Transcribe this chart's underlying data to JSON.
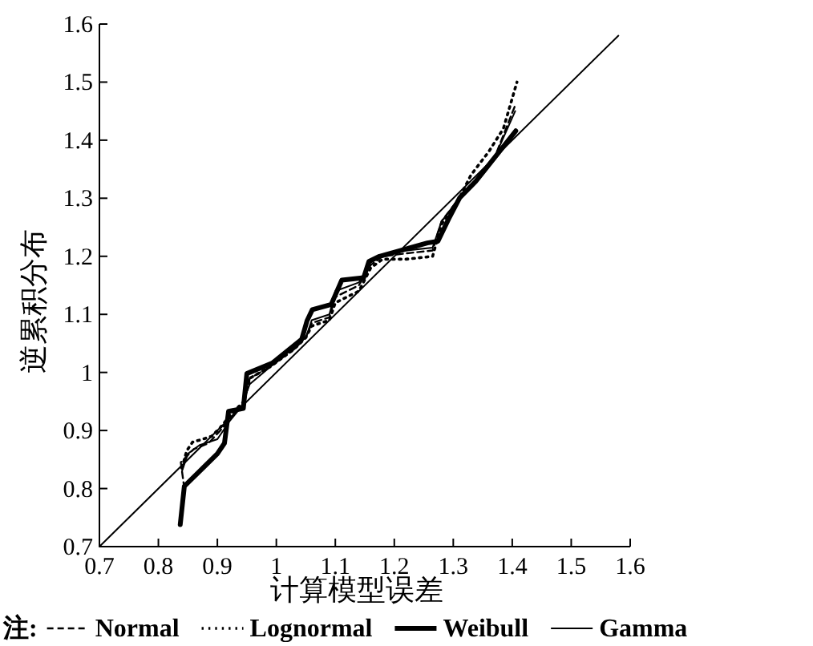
{
  "chart_data": {
    "type": "line",
    "xlabel": "计算模型误差",
    "ylabel": "逆累积分布",
    "legend_title": "注:",
    "legend": "bottom",
    "grid": false,
    "marker": "none",
    "xlim": [
      0.7,
      1.6
    ],
    "ylim": [
      0.7,
      1.6
    ],
    "xticks": [
      0.7,
      0.8,
      0.9,
      1,
      1.1,
      1.2,
      1.3,
      1.4,
      1.5,
      1.6
    ],
    "yticks": [
      0.7,
      0.8,
      0.9,
      1,
      1.1,
      1.2,
      1.3,
      1.4,
      1.5,
      1.6
    ],
    "series": [
      {
        "name": "Normal",
        "color": "#000000",
        "line_style": "dashed",
        "x": [
          0.844,
          0.838,
          0.86,
          0.885,
          0.905,
          0.925,
          0.945,
          0.955,
          0.99,
          1.03,
          1.05,
          1.06,
          1.09,
          1.1,
          1.14,
          1.16,
          1.18,
          1.22,
          1.265,
          1.28,
          1.31,
          1.34,
          1.37,
          1.405
        ],
        "values": [
          0.8,
          0.845,
          0.868,
          0.878,
          0.9,
          0.925,
          0.945,
          0.99,
          1.01,
          1.04,
          1.06,
          1.085,
          1.095,
          1.13,
          1.15,
          1.185,
          1.2,
          1.205,
          1.21,
          1.26,
          1.3,
          1.33,
          1.37,
          1.46
        ]
      },
      {
        "name": "Lognormal",
        "color": "#000000",
        "line_style": "dotted",
        "x": [
          0.84,
          0.848,
          0.858,
          0.875,
          0.89,
          0.905,
          0.925,
          0.945,
          0.955,
          0.99,
          1.03,
          1.05,
          1.06,
          1.09,
          1.1,
          1.14,
          1.16,
          1.18,
          1.22,
          1.265,
          1.28,
          1.31,
          1.33,
          1.36,
          1.385,
          1.408
        ],
        "values": [
          0.835,
          0.865,
          0.88,
          0.885,
          0.89,
          0.905,
          0.93,
          0.95,
          0.99,
          1.01,
          1.04,
          1.06,
          1.08,
          1.09,
          1.12,
          1.14,
          1.18,
          1.195,
          1.195,
          1.2,
          1.255,
          1.3,
          1.34,
          1.38,
          1.42,
          1.5
        ]
      },
      {
        "name": "Weibull",
        "color": "#000000",
        "line_style": "solid",
        "x": [
          0.837,
          0.844,
          0.87,
          0.9,
          0.912,
          0.919,
          0.944,
          0.95,
          0.993,
          1.043,
          1.052,
          1.061,
          1.093,
          1.111,
          1.148,
          1.157,
          1.175,
          1.256,
          1.274,
          1.292,
          1.311,
          1.338,
          1.406
        ],
        "values": [
          0.738,
          0.804,
          0.83,
          0.86,
          0.878,
          0.933,
          0.938,
          0.998,
          1.016,
          1.057,
          1.089,
          1.108,
          1.117,
          1.159,
          1.163,
          1.191,
          1.2,
          1.223,
          1.226,
          1.264,
          1.301,
          1.329,
          1.416
        ]
      },
      {
        "name": "Gamma",
        "color": "#000000",
        "line_style": "solid",
        "x": [
          0.84,
          0.85,
          0.87,
          0.9,
          0.92,
          0.94,
          0.955,
          0.99,
          1.03,
          1.05,
          1.06,
          1.09,
          1.1,
          1.14,
          1.16,
          1.18,
          1.22,
          1.265,
          1.28,
          1.31,
          1.34,
          1.37,
          1.405
        ],
        "values": [
          0.83,
          0.86,
          0.875,
          0.885,
          0.915,
          0.94,
          0.98,
          1.01,
          1.045,
          1.06,
          1.09,
          1.1,
          1.14,
          1.155,
          1.19,
          1.2,
          1.21,
          1.215,
          1.26,
          1.3,
          1.33,
          1.37,
          1.45
        ]
      },
      {
        "color": "#000000",
        "line_style": "solid",
        "x": [
          0.7,
          1.58
        ],
        "values": [
          0.7,
          1.58
        ]
      }
    ]
  }
}
